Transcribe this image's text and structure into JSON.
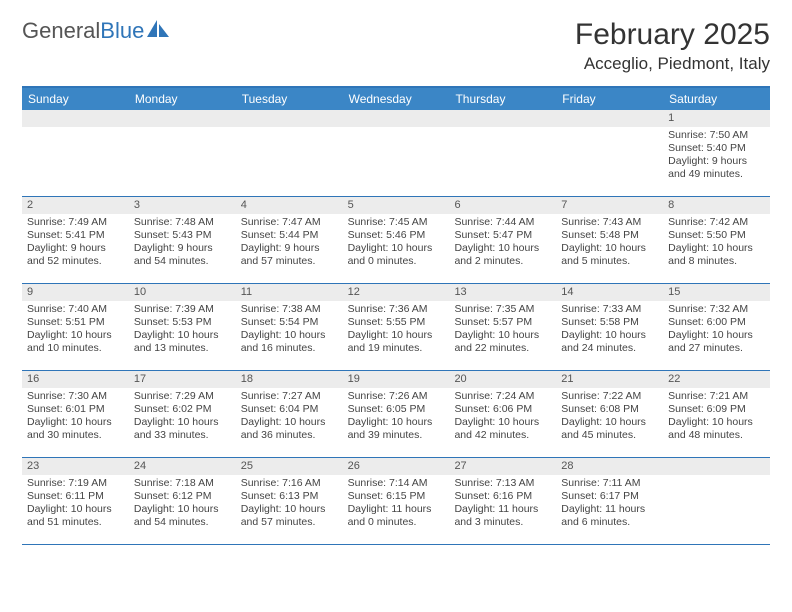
{
  "logo": {
    "text_gray": "General",
    "text_blue": "Blue"
  },
  "title": "February 2025",
  "location": "Acceglio, Piedmont, Italy",
  "day_names": [
    "Sunday",
    "Monday",
    "Tuesday",
    "Wednesday",
    "Thursday",
    "Friday",
    "Saturday"
  ],
  "colors": {
    "header_bg": "#3b86c6",
    "header_border": "#2f75b8",
    "daynum_bg": "#ececec",
    "text": "#333333"
  },
  "weeks": [
    [
      {
        "n": "",
        "sunrise": "",
        "sunset": "",
        "daylight": ""
      },
      {
        "n": "",
        "sunrise": "",
        "sunset": "",
        "daylight": ""
      },
      {
        "n": "",
        "sunrise": "",
        "sunset": "",
        "daylight": ""
      },
      {
        "n": "",
        "sunrise": "",
        "sunset": "",
        "daylight": ""
      },
      {
        "n": "",
        "sunrise": "",
        "sunset": "",
        "daylight": ""
      },
      {
        "n": "",
        "sunrise": "",
        "sunset": "",
        "daylight": ""
      },
      {
        "n": "1",
        "sunrise": "Sunrise: 7:50 AM",
        "sunset": "Sunset: 5:40 PM",
        "daylight": "Daylight: 9 hours and 49 minutes."
      }
    ],
    [
      {
        "n": "2",
        "sunrise": "Sunrise: 7:49 AM",
        "sunset": "Sunset: 5:41 PM",
        "daylight": "Daylight: 9 hours and 52 minutes."
      },
      {
        "n": "3",
        "sunrise": "Sunrise: 7:48 AM",
        "sunset": "Sunset: 5:43 PM",
        "daylight": "Daylight: 9 hours and 54 minutes."
      },
      {
        "n": "4",
        "sunrise": "Sunrise: 7:47 AM",
        "sunset": "Sunset: 5:44 PM",
        "daylight": "Daylight: 9 hours and 57 minutes."
      },
      {
        "n": "5",
        "sunrise": "Sunrise: 7:45 AM",
        "sunset": "Sunset: 5:46 PM",
        "daylight": "Daylight: 10 hours and 0 minutes."
      },
      {
        "n": "6",
        "sunrise": "Sunrise: 7:44 AM",
        "sunset": "Sunset: 5:47 PM",
        "daylight": "Daylight: 10 hours and 2 minutes."
      },
      {
        "n": "7",
        "sunrise": "Sunrise: 7:43 AM",
        "sunset": "Sunset: 5:48 PM",
        "daylight": "Daylight: 10 hours and 5 minutes."
      },
      {
        "n": "8",
        "sunrise": "Sunrise: 7:42 AM",
        "sunset": "Sunset: 5:50 PM",
        "daylight": "Daylight: 10 hours and 8 minutes."
      }
    ],
    [
      {
        "n": "9",
        "sunrise": "Sunrise: 7:40 AM",
        "sunset": "Sunset: 5:51 PM",
        "daylight": "Daylight: 10 hours and 10 minutes."
      },
      {
        "n": "10",
        "sunrise": "Sunrise: 7:39 AM",
        "sunset": "Sunset: 5:53 PM",
        "daylight": "Daylight: 10 hours and 13 minutes."
      },
      {
        "n": "11",
        "sunrise": "Sunrise: 7:38 AM",
        "sunset": "Sunset: 5:54 PM",
        "daylight": "Daylight: 10 hours and 16 minutes."
      },
      {
        "n": "12",
        "sunrise": "Sunrise: 7:36 AM",
        "sunset": "Sunset: 5:55 PM",
        "daylight": "Daylight: 10 hours and 19 minutes."
      },
      {
        "n": "13",
        "sunrise": "Sunrise: 7:35 AM",
        "sunset": "Sunset: 5:57 PM",
        "daylight": "Daylight: 10 hours and 22 minutes."
      },
      {
        "n": "14",
        "sunrise": "Sunrise: 7:33 AM",
        "sunset": "Sunset: 5:58 PM",
        "daylight": "Daylight: 10 hours and 24 minutes."
      },
      {
        "n": "15",
        "sunrise": "Sunrise: 7:32 AM",
        "sunset": "Sunset: 6:00 PM",
        "daylight": "Daylight: 10 hours and 27 minutes."
      }
    ],
    [
      {
        "n": "16",
        "sunrise": "Sunrise: 7:30 AM",
        "sunset": "Sunset: 6:01 PM",
        "daylight": "Daylight: 10 hours and 30 minutes."
      },
      {
        "n": "17",
        "sunrise": "Sunrise: 7:29 AM",
        "sunset": "Sunset: 6:02 PM",
        "daylight": "Daylight: 10 hours and 33 minutes."
      },
      {
        "n": "18",
        "sunrise": "Sunrise: 7:27 AM",
        "sunset": "Sunset: 6:04 PM",
        "daylight": "Daylight: 10 hours and 36 minutes."
      },
      {
        "n": "19",
        "sunrise": "Sunrise: 7:26 AM",
        "sunset": "Sunset: 6:05 PM",
        "daylight": "Daylight: 10 hours and 39 minutes."
      },
      {
        "n": "20",
        "sunrise": "Sunrise: 7:24 AM",
        "sunset": "Sunset: 6:06 PM",
        "daylight": "Daylight: 10 hours and 42 minutes."
      },
      {
        "n": "21",
        "sunrise": "Sunrise: 7:22 AM",
        "sunset": "Sunset: 6:08 PM",
        "daylight": "Daylight: 10 hours and 45 minutes."
      },
      {
        "n": "22",
        "sunrise": "Sunrise: 7:21 AM",
        "sunset": "Sunset: 6:09 PM",
        "daylight": "Daylight: 10 hours and 48 minutes."
      }
    ],
    [
      {
        "n": "23",
        "sunrise": "Sunrise: 7:19 AM",
        "sunset": "Sunset: 6:11 PM",
        "daylight": "Daylight: 10 hours and 51 minutes."
      },
      {
        "n": "24",
        "sunrise": "Sunrise: 7:18 AM",
        "sunset": "Sunset: 6:12 PM",
        "daylight": "Daylight: 10 hours and 54 minutes."
      },
      {
        "n": "25",
        "sunrise": "Sunrise: 7:16 AM",
        "sunset": "Sunset: 6:13 PM",
        "daylight": "Daylight: 10 hours and 57 minutes."
      },
      {
        "n": "26",
        "sunrise": "Sunrise: 7:14 AM",
        "sunset": "Sunset: 6:15 PM",
        "daylight": "Daylight: 11 hours and 0 minutes."
      },
      {
        "n": "27",
        "sunrise": "Sunrise: 7:13 AM",
        "sunset": "Sunset: 6:16 PM",
        "daylight": "Daylight: 11 hours and 3 minutes."
      },
      {
        "n": "28",
        "sunrise": "Sunrise: 7:11 AM",
        "sunset": "Sunset: 6:17 PM",
        "daylight": "Daylight: 11 hours and 6 minutes."
      },
      {
        "n": "",
        "sunrise": "",
        "sunset": "",
        "daylight": ""
      }
    ]
  ]
}
